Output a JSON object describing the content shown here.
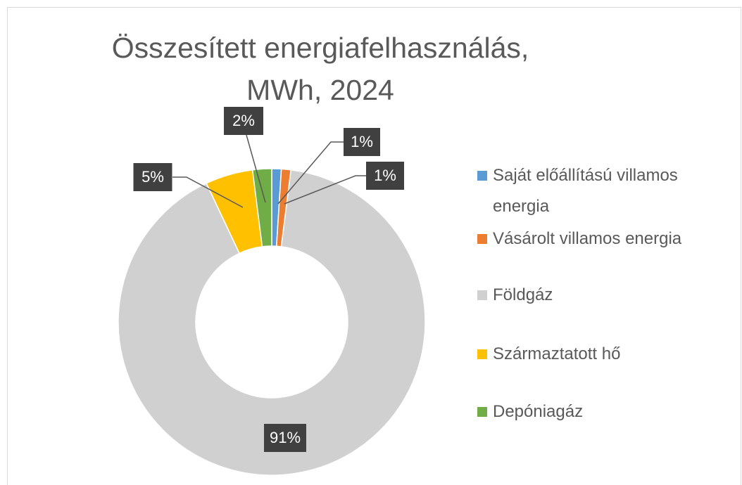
{
  "chart_data": {
    "type": "donut",
    "title": "Összesített energiafelhasználás, MWh, 2024",
    "categories": [
      "Saját előállítású villamos energia",
      "Vásárolt villamos energia",
      "Földgáz",
      "Származtatott hő",
      "Depóniagáz"
    ],
    "values": [
      1,
      1,
      91,
      5,
      2
    ],
    "value_labels": [
      "1%",
      "1%",
      "91%",
      "5%",
      "2%"
    ],
    "colors": [
      "#5b9bd5",
      "#ed7d31",
      "#d0d0d0",
      "#ffc000",
      "#70ad47"
    ],
    "legend": "right"
  }
}
